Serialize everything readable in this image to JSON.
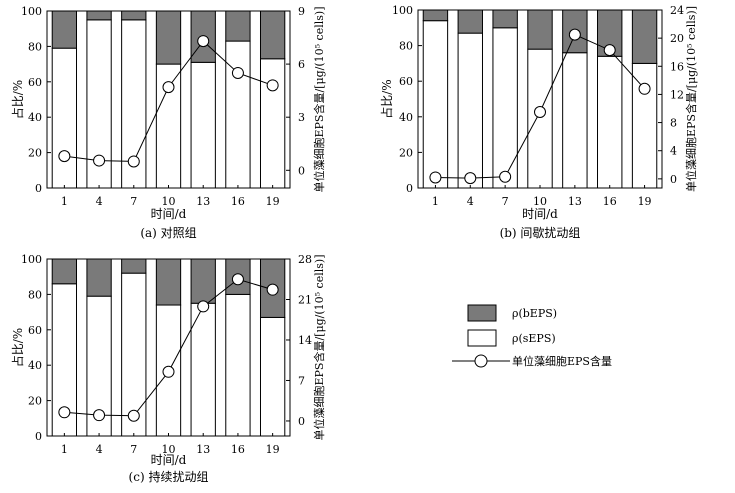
{
  "chart_data": [
    {
      "type": "bar",
      "title": "(a) 对照组",
      "xlabel": "时间/d",
      "ylabel": "占比/%",
      "ylabel_right": "单位藻细胞EPS含量/[μg/(10⁵ cells)]",
      "categories": [
        "1",
        "4",
        "7",
        "10",
        "13",
        "16",
        "19"
      ],
      "ylim": [
        0,
        100
      ],
      "yticks": [
        0,
        20,
        40,
        60,
        80,
        100
      ],
      "ylim_right": [
        -1,
        9
      ],
      "yticks_right": [
        0,
        3,
        6,
        9
      ],
      "series": [
        {
          "name": "ρ(sEPS)",
          "values": [
            79,
            95,
            95,
            70,
            71,
            83,
            73
          ]
        },
        {
          "name": "ρ(bEPS)",
          "values": [
            21,
            5,
            5,
            30,
            29,
            17,
            27
          ]
        },
        {
          "name": "单位藻细胞EPS含量",
          "axis": "right",
          "values": [
            0.8,
            0.55,
            0.5,
            4.7,
            7.3,
            5.5,
            4.8
          ]
        }
      ]
    },
    {
      "type": "bar",
      "title": "(b) 间歇扰动组",
      "xlabel": "时间/d",
      "ylabel": "占比/%",
      "ylabel_right": "单位藻细胞EPS含量/[μg/(10⁵ cells)]",
      "categories": [
        "1",
        "4",
        "7",
        "10",
        "13",
        "16",
        "19"
      ],
      "ylim": [
        0,
        100
      ],
      "yticks": [
        0,
        20,
        40,
        60,
        80,
        100
      ],
      "ylim_right": [
        -1.3,
        24
      ],
      "yticks_right": [
        0,
        4,
        8,
        12,
        16,
        20,
        24
      ],
      "series": [
        {
          "name": "ρ(sEPS)",
          "values": [
            94,
            87,
            90,
            78,
            76,
            74,
            70
          ]
        },
        {
          "name": "ρ(bEPS)",
          "values": [
            6,
            13,
            10,
            22,
            24,
            26,
            30
          ]
        },
        {
          "name": "单位藻细胞EPS含量",
          "axis": "right",
          "values": [
            0.2,
            0.1,
            0.3,
            9.5,
            20.5,
            18.3,
            12.8
          ]
        }
      ]
    },
    {
      "type": "bar",
      "title": "(c) 持续扰动组",
      "xlabel": "时间/d",
      "ylabel": "占比/%",
      "ylabel_right": "单位藻细胞EPS含量/[μg/(10⁵ cells)]",
      "categories": [
        "1",
        "4",
        "7",
        "10",
        "13",
        "16",
        "19"
      ],
      "ylim": [
        0,
        100
      ],
      "yticks": [
        0,
        20,
        40,
        60,
        80,
        100
      ],
      "ylim_right": [
        -2.6,
        28
      ],
      "yticks_right": [
        0,
        7,
        14,
        21,
        28
      ],
      "series": [
        {
          "name": "ρ(sEPS)",
          "values": [
            86,
            79,
            92,
            74,
            75,
            80,
            67
          ]
        },
        {
          "name": "ρ(bEPS)",
          "values": [
            14,
            21,
            8,
            26,
            25,
            20,
            33
          ]
        },
        {
          "name": "单位藻细胞EPS含量",
          "axis": "right",
          "values": [
            1.5,
            1.0,
            0.9,
            8.5,
            19.8,
            24.5,
            22.7
          ]
        }
      ]
    }
  ],
  "legend": {
    "items": [
      {
        "label": "ρ(bEPS)",
        "color": "#7a7a7a"
      },
      {
        "label": "ρ(sEPS)",
        "color": "#ffffff"
      },
      {
        "label": "单位藻细胞EPS含量",
        "color": "#000000"
      }
    ]
  },
  "colors": {
    "bEPS": "#7a7a7a",
    "sEPS": "#ffffff",
    "line": "#000000"
  }
}
